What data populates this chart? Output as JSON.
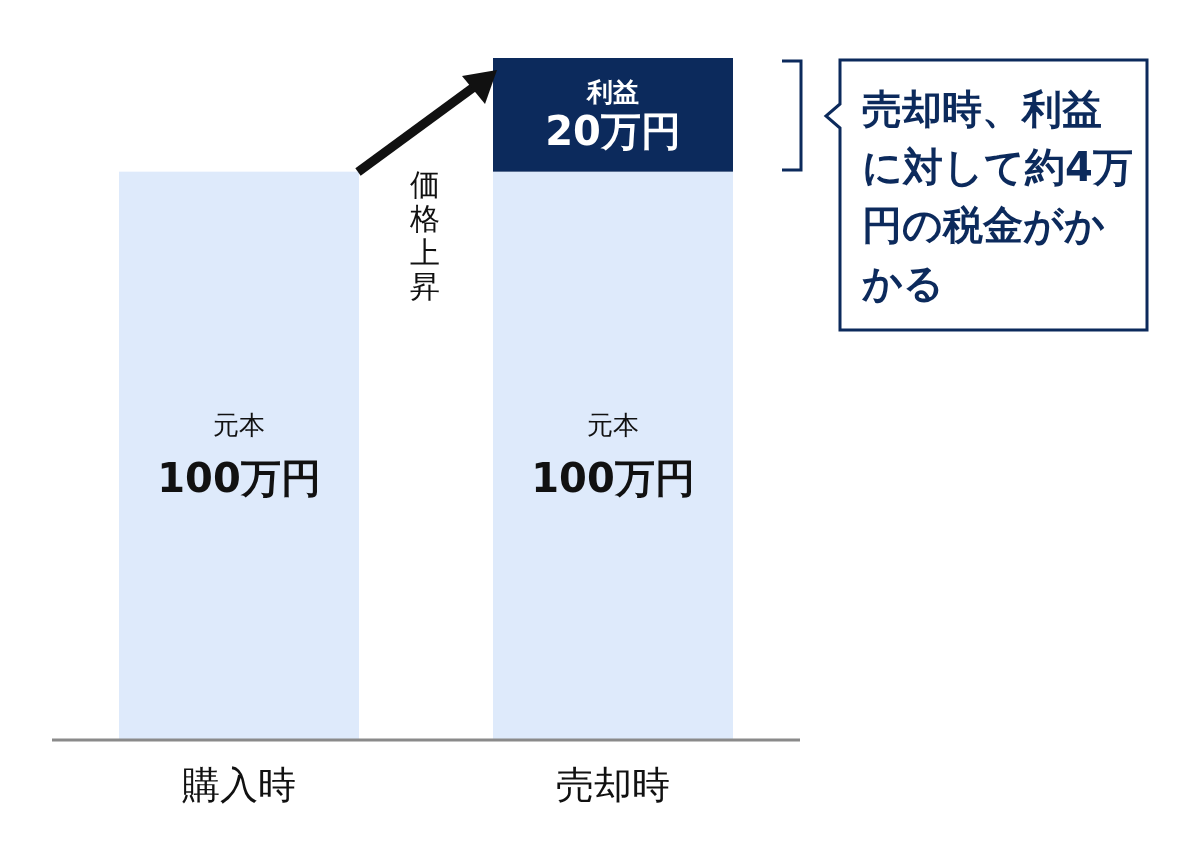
{
  "chart_data": {
    "type": "bar",
    "stacked": true,
    "categories": [
      "購入時",
      "売却時"
    ],
    "series": [
      {
        "name": "元本",
        "color": "#deeafb",
        "values": [
          100,
          100
        ],
        "value_labels": [
          "100万円",
          "100万円"
        ]
      },
      {
        "name": "利益",
        "color": "#0c2a5c",
        "values": [
          null,
          20
        ],
        "value_labels": [
          null,
          "20万円"
        ]
      }
    ],
    "annotations": [
      "価格上昇",
      "売却時、利益に対して約4万円の税金がかかる"
    ]
  }
}
